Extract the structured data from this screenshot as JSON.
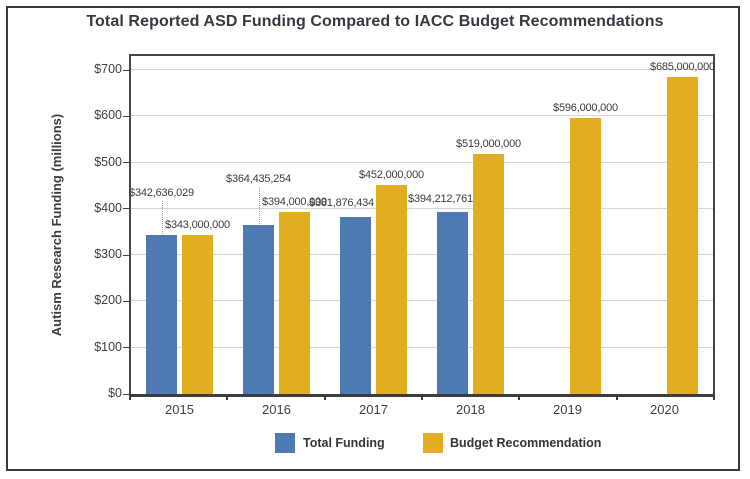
{
  "chart_data": {
    "type": "bar",
    "title": "Total Reported ASD Funding Compared to IACC Budget Recommendations",
    "ylabel": "Autism Research Funding (millions)",
    "xlabel": "",
    "ylim": [
      0,
      700
    ],
    "ytick_interval": 100,
    "yticks": [
      {
        "value": 0,
        "label": "$0"
      },
      {
        "value": 100,
        "label": "$100"
      },
      {
        "value": 200,
        "label": "$200"
      },
      {
        "value": 300,
        "label": "$300"
      },
      {
        "value": 400,
        "label": "$400"
      },
      {
        "value": 500,
        "label": "$500"
      },
      {
        "value": 600,
        "label": "$600"
      },
      {
        "value": 700,
        "label": "$700"
      }
    ],
    "grid": true,
    "legend_position": "bottom-center",
    "categories": [
      "2015",
      "2016",
      "2017",
      "2018",
      "2019",
      "2020"
    ],
    "series": [
      {
        "name": "Total Funding",
        "color": "#4e79b1",
        "values_millions": [
          342.636029,
          364.435254,
          381.876434,
          394.212761,
          null,
          null
        ],
        "data_labels": [
          "$342,636,029",
          "$364,435,254",
          "$381,876,434",
          "$394,212,761",
          null,
          null
        ]
      },
      {
        "name": "Budget Recommendation",
        "color": "#e3ad21",
        "values_millions": [
          343,
          394,
          452,
          519,
          596,
          685
        ],
        "data_labels": [
          "$343,000,000",
          "$394,000,000",
          "$452,000,000",
          "$519,000,000",
          "$596,000,000",
          "$685,000,000"
        ]
      }
    ]
  },
  "legend": {
    "items": [
      {
        "label": "Total Funding",
        "color": "#4e79b1"
      },
      {
        "label": "Budget Recommendation",
        "color": "#e3ad21"
      }
    ]
  },
  "colors": {
    "bar_blue": "#4e79b1",
    "bar_gold": "#e3ad21",
    "gridline": "#d6d6d6",
    "axis": "#414141",
    "text": "#404040",
    "title_text": "#373746",
    "frame_border": "#3a3a3a"
  }
}
